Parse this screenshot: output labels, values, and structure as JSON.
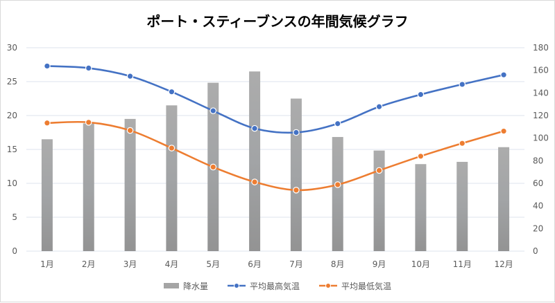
{
  "chart_data": {
    "type": "bar+line",
    "title": "ポート・スティーブンスの年間気候グラフ",
    "categories": [
      "1月",
      "2月",
      "3月",
      "4月",
      "5月",
      "6月",
      "7月",
      "8月",
      "9月",
      "10月",
      "11月",
      "12月"
    ],
    "y_left": {
      "range": [
        0,
        30
      ],
      "ticks": [
        0,
        5,
        10,
        15,
        20,
        25,
        30
      ]
    },
    "y_right": {
      "range": [
        0,
        180
      ],
      "ticks": [
        0,
        20,
        40,
        60,
        80,
        100,
        120,
        140,
        160,
        180
      ]
    },
    "grid": true,
    "legend_position": "bottom",
    "series": [
      {
        "name": "降水量",
        "type": "bar",
        "axis": "right",
        "color": "#a5a5a5",
        "values": [
          99,
          113,
          117,
          129,
          149,
          159,
          135,
          101,
          89,
          77,
          79,
          92
        ]
      },
      {
        "name": "平均最高気温",
        "type": "line",
        "axis": "left",
        "color": "#4472c4",
        "values": [
          27.3,
          27.0,
          25.8,
          23.5,
          20.7,
          18.1,
          17.5,
          18.8,
          21.3,
          23.1,
          24.6,
          26.0
        ]
      },
      {
        "name": "平均最低気温",
        "type": "line",
        "axis": "left",
        "color": "#ed7d31",
        "values": [
          18.9,
          19.0,
          17.8,
          15.2,
          12.4,
          10.2,
          9.0,
          9.8,
          11.9,
          14.0,
          15.9,
          17.7
        ]
      }
    ]
  }
}
